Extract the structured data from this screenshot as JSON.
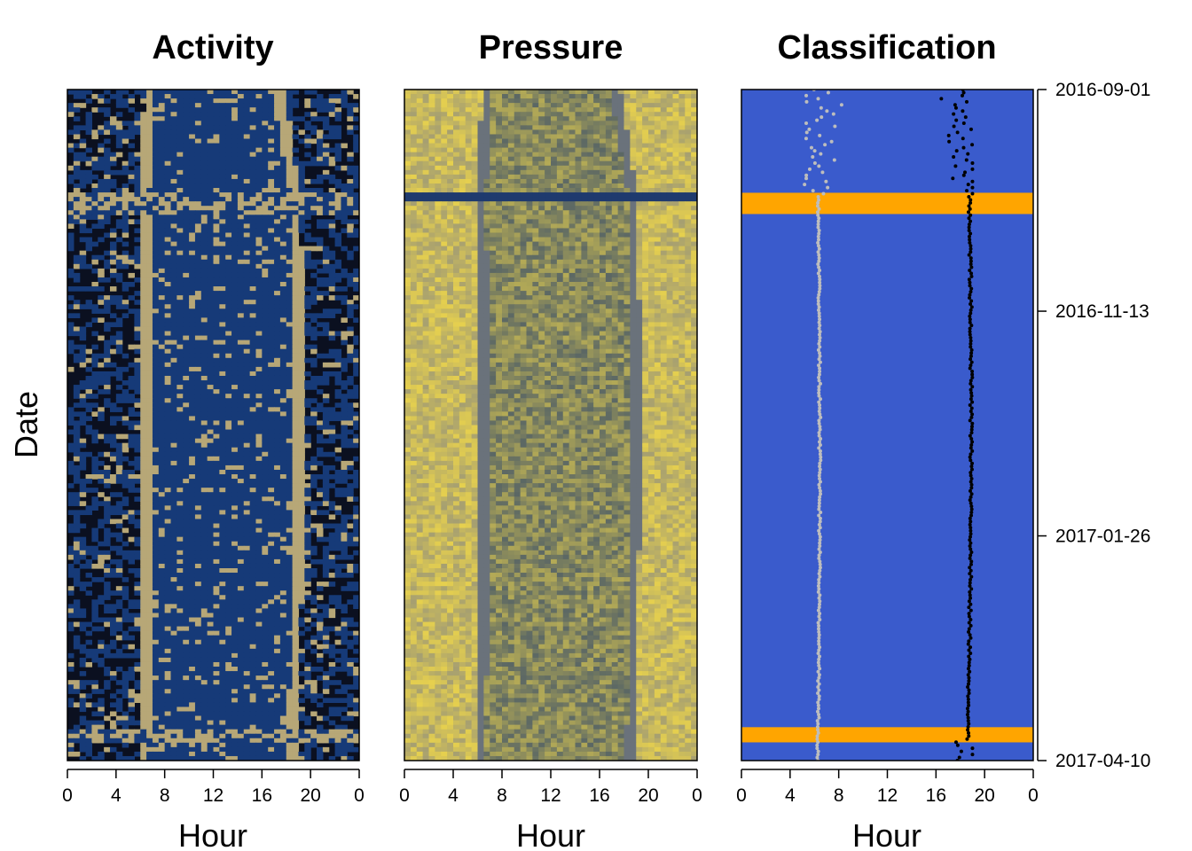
{
  "chart_data": [
    {
      "type": "heatmap",
      "title": "Activity",
      "xlabel": "Hour",
      "ylabel": "Date",
      "x_ticks": [
        "0",
        "4",
        "8",
        "12",
        "16",
        "20",
        "0"
      ],
      "xlim": [
        0,
        24
      ],
      "date_range": [
        "2016-09-01",
        "2017-04-10"
      ],
      "colors": {
        "low": "#0b1020",
        "mid": "#163a78",
        "high": "#b7a777"
      },
      "features": {
        "sunrise_band_hour": [
          7.0,
          6.0
        ],
        "sunset_band_hour": [
          17.0,
          19.0
        ],
        "active_window_hour": [
          6,
          19
        ]
      }
    },
    {
      "type": "heatmap",
      "title": "Pressure",
      "xlabel": "Hour",
      "x_ticks": [
        "0",
        "4",
        "8",
        "12",
        "16",
        "20",
        "0"
      ],
      "xlim": [
        0,
        24
      ],
      "date_range": [
        "2016-09-01",
        "2017-04-10"
      ],
      "colors": {
        "low": "#1f3a6e",
        "mid": "#8a8a80",
        "high": "#e6d04e"
      }
    },
    {
      "type": "heatmap",
      "title": "Classification",
      "xlabel": "Hour",
      "x_ticks": [
        "0",
        "4",
        "8",
        "12",
        "16",
        "20",
        "0"
      ],
      "xlim": [
        0,
        24
      ],
      "y_ticks": [
        "2016-09-01",
        "2016-11-13",
        "2017-01-26",
        "2017-04-10"
      ],
      "date_range": [
        "2016-09-01",
        "2017-04-10"
      ],
      "colors": {
        "class_a": "#3a5bcc",
        "class_b": "#ffa500",
        "sunrise": "#bdbdbd",
        "sunset": "#000000"
      },
      "class_b_periods": [
        {
          "start_date": "2016-10-05",
          "end_date": "2016-10-12"
        },
        {
          "start_date": "2017-03-30",
          "end_date": "2017-04-04"
        }
      ],
      "series": [
        {
          "values_hour_range": [
            4.5,
            9.5
          ]
        },
        {
          "values_hour_range": [
            15,
            19
          ]
        }
      ]
    }
  ]
}
